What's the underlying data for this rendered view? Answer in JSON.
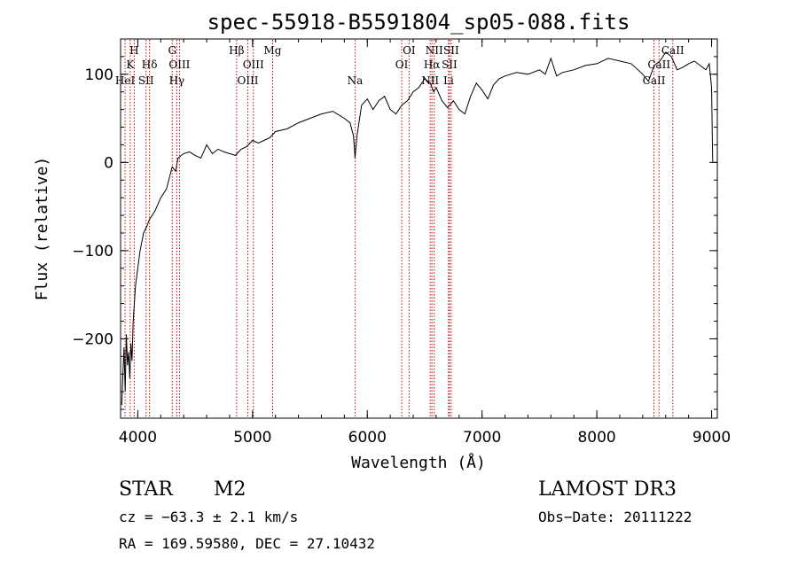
{
  "chart_data": {
    "type": "line",
    "title": "spec-55918-B5591804_sp05-088.fits",
    "xlabel": "Wavelength (Å)",
    "ylabel": "Flux (relative)",
    "xlim": [
      3850,
      9050
    ],
    "ylim": [
      -290,
      140
    ],
    "xticks": [
      4000,
      5000,
      6000,
      7000,
      8000,
      9000
    ],
    "yticks": [
      -200,
      -100,
      0,
      100
    ],
    "grid": false,
    "line_color": "#000000",
    "marker_color": "#cc0000",
    "series": [
      {
        "x": [
          3860,
          3870,
          3880,
          3890,
          3900,
          3910,
          3920,
          3930,
          3940,
          3950,
          3960,
          3980,
          4000,
          4020,
          4050,
          4080,
          4100,
          4150,
          4200,
          4250,
          4300,
          4330,
          4350,
          4400,
          4450,
          4500,
          4550,
          4600,
          4650,
          4700,
          4750,
          4800,
          4850,
          4900,
          4950,
          5000,
          5050,
          5100,
          5150,
          5200,
          5300,
          5400,
          5500,
          5600,
          5700,
          5800,
          5850,
          5880,
          5893,
          5910,
          5950,
          6000,
          6050,
          6100,
          6150,
          6200,
          6250,
          6300,
          6350,
          6400,
          6450,
          6500,
          6550,
          6563,
          6580,
          6600,
          6650,
          6700,
          6750,
          6800,
          6850,
          6900,
          6950,
          7000,
          7050,
          7100,
          7150,
          7200,
          7300,
          7400,
          7500,
          7550,
          7600,
          7650,
          7700,
          7800,
          7900,
          8000,
          8100,
          8200,
          8300,
          8400,
          8450,
          8500,
          8550,
          8600,
          8650,
          8700,
          8750,
          8800,
          8850,
          8900,
          8950,
          8980,
          9000,
          9010
        ],
        "y": [
          -275,
          -240,
          -210,
          -260,
          -195,
          -230,
          -215,
          -245,
          -205,
          -225,
          -180,
          -140,
          -120,
          -100,
          -80,
          -72,
          -65,
          -55,
          -40,
          -30,
          -5,
          -10,
          5,
          10,
          12,
          8,
          5,
          20,
          10,
          15,
          12,
          10,
          8,
          15,
          18,
          25,
          22,
          25,
          28,
          35,
          38,
          45,
          50,
          55,
          58,
          50,
          45,
          30,
          5,
          30,
          65,
          72,
          60,
          70,
          75,
          60,
          55,
          65,
          70,
          80,
          85,
          95,
          90,
          85,
          80,
          85,
          70,
          62,
          70,
          60,
          55,
          75,
          90,
          82,
          72,
          88,
          95,
          98,
          102,
          100,
          105,
          100,
          118,
          98,
          102,
          105,
          110,
          112,
          118,
          115,
          112,
          100,
          92,
          110,
          115,
          125,
          120,
          105,
          108,
          112,
          115,
          110,
          105,
          112,
          85,
          0
        ]
      }
    ],
    "line_markers": [
      {
        "wl": 3889,
        "label": "HeI",
        "row": 3
      },
      {
        "wl": 3934,
        "label": "K",
        "row": 2
      },
      {
        "wl": 3969,
        "label": "H",
        "row": 1
      },
      {
        "wl": 4072,
        "label": "SII",
        "row": 3
      },
      {
        "wl": 4102,
        "label": "Hδ",
        "row": 2
      },
      {
        "wl": 4300,
        "label": "G",
        "row": 1
      },
      {
        "wl": 4340,
        "label": "Hγ",
        "row": 3
      },
      {
        "wl": 4363,
        "label": "OIII",
        "row": 2
      },
      {
        "wl": 4861,
        "label": "Hβ",
        "row": 1
      },
      {
        "wl": 4959,
        "label": "OIII",
        "row": 3
      },
      {
        "wl": 5007,
        "label": "OIII",
        "row": 2
      },
      {
        "wl": 5175,
        "label": "Mg",
        "row": 1
      },
      {
        "wl": 5893,
        "label": "Na",
        "row": 3
      },
      {
        "wl": 6300,
        "label": "OI",
        "row": 2
      },
      {
        "wl": 6364,
        "label": "OI",
        "row": 1
      },
      {
        "wl": 6548,
        "label": "NII",
        "row": 3
      },
      {
        "wl": 6563,
        "label": "Hα",
        "row": 2
      },
      {
        "wl": 6583,
        "label": "NII",
        "row": 1
      },
      {
        "wl": 6708,
        "label": "Li",
        "row": 3
      },
      {
        "wl": 6716,
        "label": "SII",
        "row": 2
      },
      {
        "wl": 6731,
        "label": "SII",
        "row": 1
      },
      {
        "wl": 8498,
        "label": "CaII",
        "row": 3
      },
      {
        "wl": 8542,
        "label": "CaII",
        "row": 2
      },
      {
        "wl": 8662,
        "label": "CaII",
        "row": 1
      }
    ]
  },
  "info": {
    "class": "STAR",
    "subclass": "M2",
    "survey": "LAMOST DR3",
    "cz": "cz = −63.3 ± 2.1 km/s",
    "obs_date": "Obs−Date: 20111222",
    "coords": "RA = 169.59580, DEC =  27.10432"
  }
}
